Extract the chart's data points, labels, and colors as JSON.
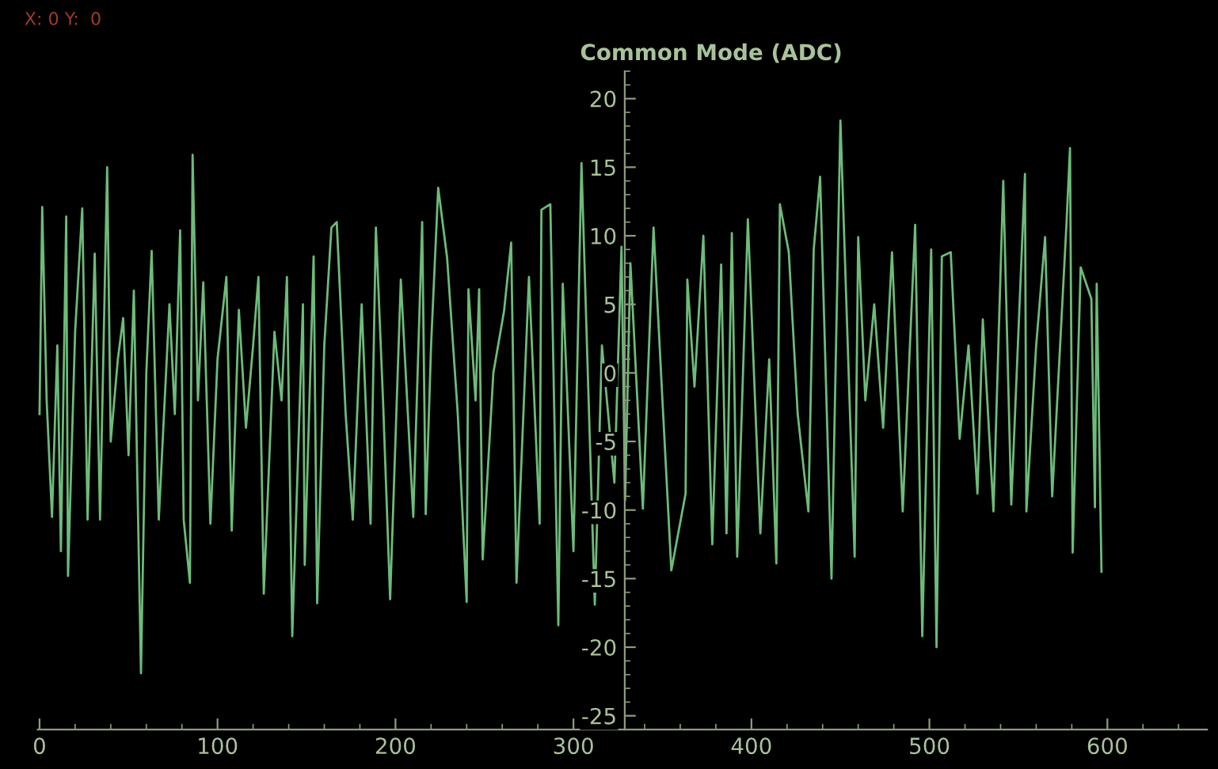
{
  "chart_data": {
    "type": "line",
    "ylabel": "Common Mode (ADC)",
    "annotations": [
      "X: 0 Y:  0"
    ],
    "xlim": [
      -1,
      656
    ],
    "ylim": [
      -26,
      22
    ],
    "xticks": [
      0,
      100,
      200,
      300,
      400,
      500,
      600
    ],
    "yticks": [
      -25,
      -20,
      -15,
      -10,
      -5,
      0,
      5,
      10,
      15,
      20
    ],
    "grid": false,
    "line_style": "solid",
    "marker": "none",
    "series": [
      {
        "color": "#6dbb7a",
        "x": [
          0,
          1.5,
          4,
          7,
          10,
          12,
          15,
          16,
          20,
          24,
          27,
          31,
          34,
          38,
          40,
          44,
          47,
          50,
          53,
          57,
          60,
          63,
          67,
          73,
          76,
          79,
          81,
          84.5,
          86,
          89,
          92,
          96,
          100,
          105,
          108,
          112,
          116,
          120,
          123,
          126,
          132,
          136,
          139,
          142,
          148,
          149,
          154,
          156,
          160,
          164,
          167,
          172,
          176,
          181,
          186,
          189,
          193,
          197,
          203,
          210,
          215,
          217,
          220,
          224,
          229,
          235,
          240,
          241,
          245,
          247,
          249,
          255,
          261,
          265,
          268,
          275,
          281,
          282,
          287,
          291.5,
          294,
          300,
          304.5,
          312,
          316,
          323,
          327,
          329,
          332,
          339,
          345,
          350,
          355,
          363,
          364,
          368,
          373,
          378,
          383,
          386,
          389,
          392,
          398,
          405,
          410,
          414,
          416,
          421,
          426,
          432,
          435,
          438.6,
          445,
          450,
          458,
          460,
          464,
          469,
          474,
          479,
          485,
          492,
          496,
          501,
          504,
          507,
          512,
          517,
          522,
          527,
          530,
          536,
          541.5,
          546,
          553.7,
          554.5,
          560,
          565,
          569,
          577,
          579,
          580.5,
          585,
          591,
          593,
          594,
          596.7
        ],
        "values": [
          -3,
          12.1,
          -2,
          -10.5,
          2,
          -13,
          11.4,
          -14.8,
          3,
          12,
          -10.7,
          8.7,
          -10.7,
          15,
          -5,
          1,
          4,
          -6,
          6,
          -21.9,
          0,
          8.9,
          -10.7,
          5,
          -3,
          10.4,
          -10.7,
          -15.3,
          15.9,
          -2,
          6.6,
          -11,
          1,
          7,
          -11.5,
          4.6,
          -4,
          2,
          7,
          -16.1,
          3,
          -2,
          7,
          -19.2,
          5,
          -14,
          8.5,
          -16.8,
          2,
          10.6,
          11,
          -3,
          -10.7,
          5,
          -11,
          10.6,
          -2,
          -16.5,
          6.8,
          -10.5,
          11,
          -10.3,
          2,
          13.5,
          8.4,
          -3,
          -16.7,
          6.1,
          -2,
          6.1,
          -13.6,
          0,
          4.5,
          9.5,
          -15.3,
          7,
          -11,
          11.9,
          12.3,
          -18.4,
          6.5,
          -13,
          15.3,
          -16.9,
          2,
          -8,
          9.2,
          -9.3,
          8,
          -9.9,
          10.6,
          -2,
          -14.4,
          -8.8,
          6.8,
          -1,
          10,
          -12.5,
          7.9,
          -11.7,
          10.2,
          -13.4,
          11.2,
          -11.7,
          1,
          -13.9,
          12.3,
          8.8,
          -3,
          -10.1,
          9,
          14.3,
          -15,
          18.4,
          -13.4,
          9.9,
          -2,
          5,
          -4,
          8.8,
          -10.1,
          10.8,
          -19.2,
          9,
          -20,
          8.5,
          8.8,
          -4.8,
          2,
          -8.8,
          3.9,
          -10.1,
          14,
          -9.6,
          14.5,
          -10.1,
          2,
          9.9,
          -9,
          10.8,
          16.4,
          -13.1,
          7.7,
          5.4,
          -9.8,
          6.5,
          -14.5
        ]
      }
    ]
  }
}
